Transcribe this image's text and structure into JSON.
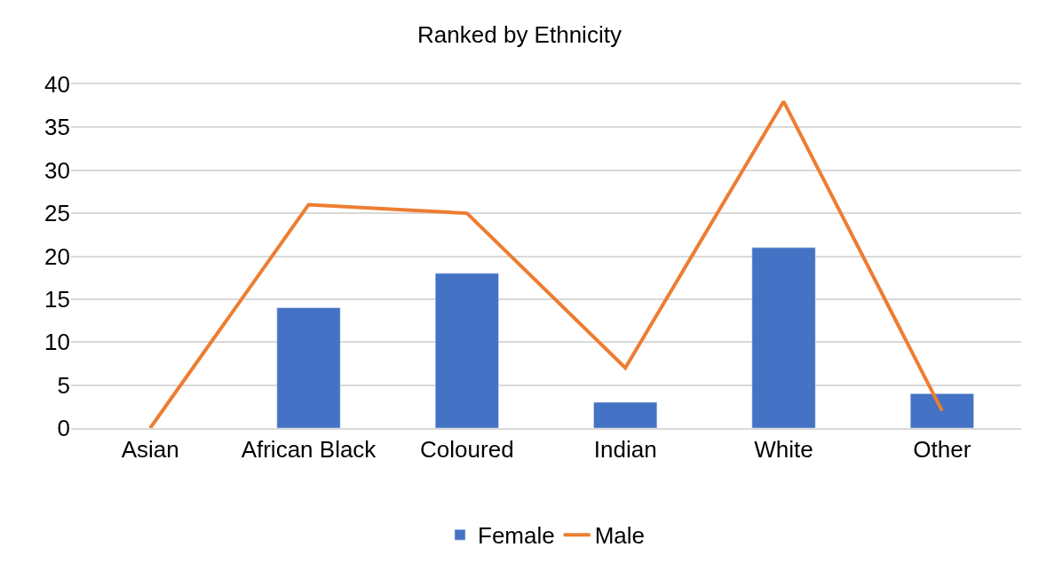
{
  "chart_data": {
    "type": "bar",
    "title": "Ranked by Ethnicity",
    "categories": [
      "Asian",
      "African Black",
      "Coloured",
      "Indian",
      "White",
      "Other"
    ],
    "series": [
      {
        "name": "Female",
        "color": "#4472c4",
        "values": [
          null,
          14,
          18,
          3,
          21,
          4
        ]
      },
      {
        "name": "Male",
        "type": "line",
        "color": "#ed7d31",
        "values": [
          0,
          26,
          25,
          7,
          38,
          2
        ]
      }
    ],
    "ylim": [
      0,
      40
    ],
    "yticks": [
      0,
      5,
      10,
      15,
      20,
      25,
      30,
      35,
      40
    ],
    "grid": "y",
    "legend": "bottom",
    "marker": "none",
    "line_style": "solid"
  }
}
